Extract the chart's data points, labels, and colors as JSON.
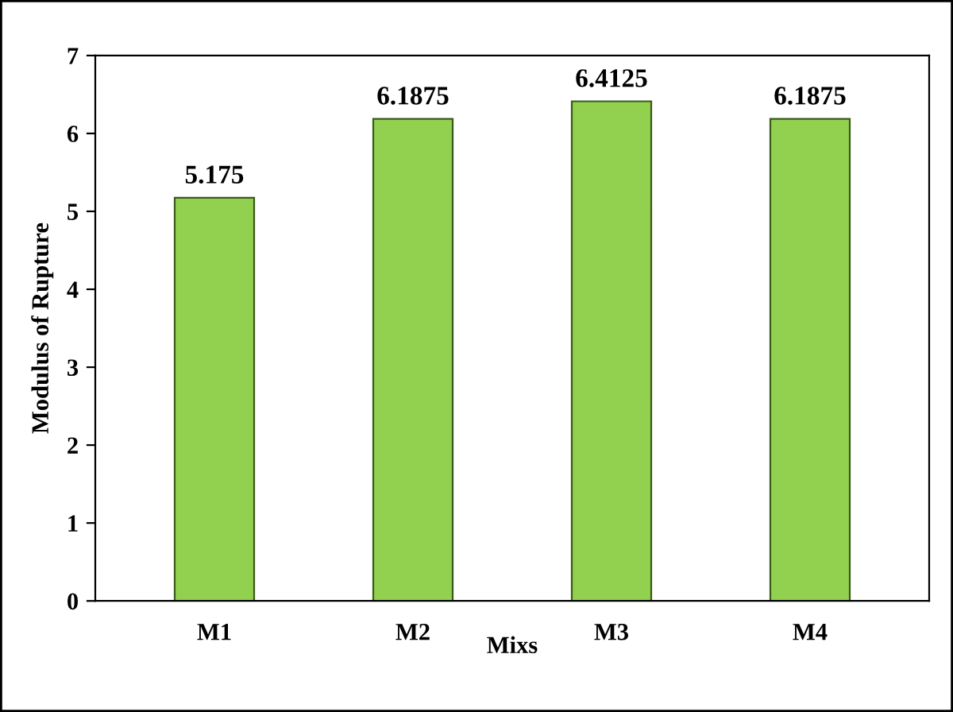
{
  "chart_data": {
    "type": "bar",
    "xlabel": "Mixs",
    "ylabel": "Modulus of Rupture",
    "categories": [
      "M1",
      "M2",
      "M3",
      "M4"
    ],
    "values": [
      5.175,
      6.1875,
      6.4125,
      6.1875
    ],
    "color": "#92d050",
    "ylim": [
      0,
      7
    ],
    "yticks": [
      0,
      1,
      2,
      3,
      4,
      5,
      6,
      7
    ],
    "data_labels": true,
    "grid": false,
    "legend": false
  }
}
